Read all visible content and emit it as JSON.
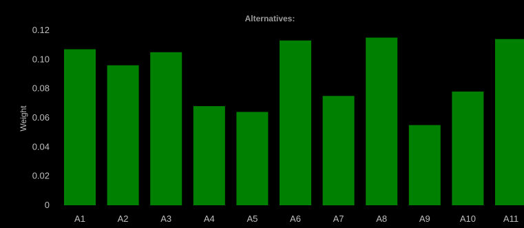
{
  "chart_data": {
    "type": "bar",
    "title": "Alternatives:",
    "xlabel": "",
    "ylabel": "Weight",
    "categories": [
      "A1",
      "A2",
      "A3",
      "A4",
      "A5",
      "A6",
      "A7",
      "A8",
      "A9",
      "A10",
      "A11"
    ],
    "values": [
      0.107,
      0.096,
      0.105,
      0.068,
      0.064,
      0.113,
      0.075,
      0.115,
      0.055,
      0.078,
      0.114
    ],
    "ylim": [
      0,
      0.12
    ],
    "yticks": [
      {
        "value": 0,
        "label": "0"
      },
      {
        "value": 0.02,
        "label": "0.02"
      },
      {
        "value": 0.04,
        "label": "0.04"
      },
      {
        "value": 0.06,
        "label": "0.06"
      },
      {
        "value": 0.08,
        "label": "0.08"
      },
      {
        "value": 0.1,
        "label": "0.10"
      },
      {
        "value": 0.12,
        "label": "0.12"
      }
    ],
    "grid": false,
    "legend": "none",
    "colors": {
      "background": "#000000",
      "bar": "#008000",
      "text": "#bfbfbf",
      "title": "#9a9a9a"
    }
  }
}
